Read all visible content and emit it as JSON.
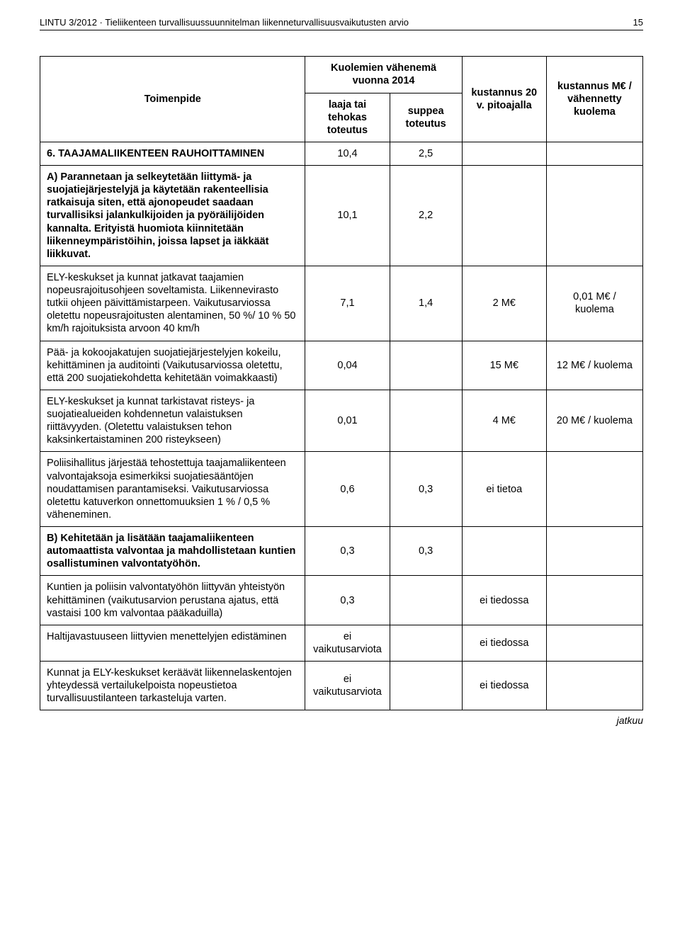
{
  "header": {
    "left": "LINTU 3/2012 · Tieliikenteen turvallisuussuunnitelman liikenneturvallisuusvaikutusten arvio",
    "pageNumber": "15"
  },
  "tableHead": {
    "toimenpide": "Toimenpide",
    "kuolemienGroup": "Kuolemien vähenemä vuonna 2014",
    "colA": "laaja tai tehokas toteutus",
    "colB": "suppea toteutus",
    "colC": "kustannus 20 v. pitoajalla",
    "colD": "kustannus M€ / vähennetty kuolema"
  },
  "rows": [
    {
      "desc": "6. TAAJAMALIIKENTEEN RAUHOITTAMINEN",
      "a": "10,4",
      "b": "2,5",
      "c": "",
      "d": "",
      "bold": true
    },
    {
      "desc": "A) Parannetaan ja selkeytetään liittymä- ja suojatiejärjestelyjä ja käytetään rakenteellisia ratkaisuja siten, että ajonopeudet saadaan turvallisiksi jalankulkijoiden ja pyöräilijöiden kannalta. Erityistä huomiota kiinnitetään liikenneympäristöihin, joissa lapset ja iäkkäät liikkuvat.",
      "a": "10,1",
      "b": "2,2",
      "c": "",
      "d": "",
      "bold": true
    },
    {
      "desc": "ELY-keskukset ja kunnat jatkavat taajamien nopeusrajoitusohjeen soveltamista. Liikennevirasto tutkii ohjeen päivittämistarpeen. Vaikutusarviossa oletettu nopeusrajoitusten alentaminen, 50 %/ 10 %  50 km/h rajoituksista arvoon 40 km/h",
      "a": "7,1",
      "b": "1,4",
      "c": "2 M€",
      "d": "0,01 M€ / kuolema",
      "bold": false
    },
    {
      "desc": "Pää- ja kokoojakatujen suojatiejärjestelyjen kokeilu,  kehittäminen ja auditointi (Vaikutusarviossa oletettu, että 200 suojatiekohdetta kehitetään voimakkaasti)",
      "a": "0,04",
      "b": "",
      "c": "15 M€",
      "d": "12 M€ / kuolema",
      "bold": false
    },
    {
      "desc": "ELY-keskukset ja kunnat tarkistavat risteys- ja suojatiealueiden kohdennetun valaistuksen riittävyyden. (Oletettu valaistuksen tehon kaksinkertaistaminen 200 risteykseen)",
      "a": "0,01",
      "b": "",
      "c": "4 M€",
      "d": "20 M€ / kuolema",
      "bold": false
    },
    {
      "desc": "Poliisihallitus järjestää tehostettuja taajamaliikenteen valvontajaksoja esimerkiksi suojatiesääntöjen noudattamisen parantamiseksi. Vaikutusarviossa oletettu katuverkon onnettomuuksien 1 % / 0,5 % väheneminen.",
      "a": "0,6",
      "b": "0,3",
      "c": "ei tietoa",
      "d": "",
      "bold": false
    },
    {
      "desc": "B) Kehitetään ja lisätään taajamaliikenteen automaattista valvontaa ja mahdollistetaan kuntien osallistuminen valvontatyöhön.",
      "a": "0,3",
      "b": "0,3",
      "c": "",
      "d": "",
      "bold": true
    },
    {
      "desc": "Kuntien ja poliisin valvontatyöhön liittyvän yhteistyön kehittäminen (vaikutusarvion perustana ajatus, että vastaisi 100 km valvontaa pääkaduilla)",
      "a": "0,3",
      "b": "",
      "c": "ei tiedossa",
      "d": "",
      "bold": false
    },
    {
      "desc": "Haltijavastuuseen liittyvien menettelyjen edistäminen",
      "a": "ei vaikutusarviota",
      "b": "",
      "c": "ei tiedossa",
      "d": "",
      "bold": false
    },
    {
      "desc": "Kunnat ja ELY-keskukset keräävät liikennelaskentojen yhteydessä vertailukelpoista nopeustietoa turvallisuustilanteen tarkasteluja varten.",
      "a": "ei vaikutusarviota",
      "b": "",
      "c": "ei tiedossa",
      "d": "",
      "bold": false
    }
  ],
  "footer": {
    "jatkuu": "jatkuu"
  }
}
